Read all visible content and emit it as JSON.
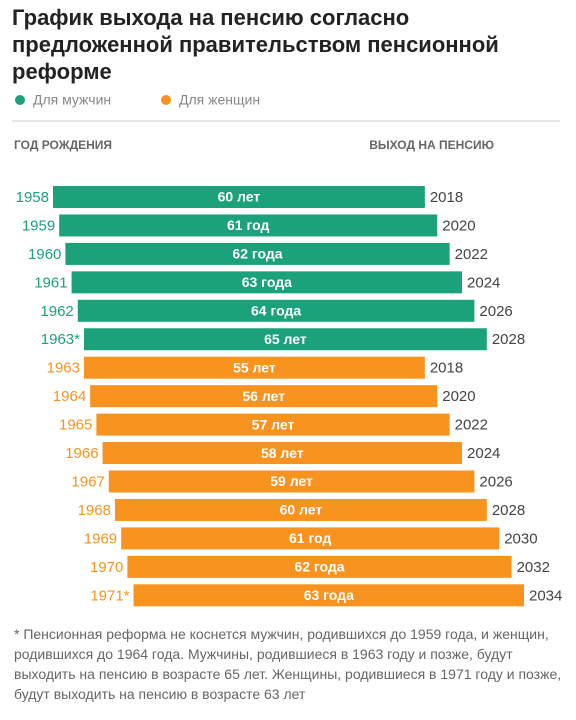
{
  "chart_data": {
    "type": "range-bar",
    "title": "График выхода на пенсию согласно предложенной правительством пенсионной реформе",
    "start_label": "ГОД РОЖДЕНИЯ",
    "end_label": "ВЫХОД НА ПЕНСИЮ",
    "series": [
      {
        "name": "Для мужчин",
        "color": "#1ba27a",
        "start": [
          1958,
          1959,
          1960,
          1961,
          1962,
          {
            "value": 1963,
            "label": "1963*"
          }
        ],
        "end": [
          2018,
          2020,
          2022,
          2024,
          2026,
          2028
        ],
        "values": [
          60,
          61,
          62,
          63,
          64,
          65
        ],
        "value_labels": [
          "60 лет",
          "61 год",
          "62 года",
          "63 года",
          "64 года",
          "65 лет"
        ]
      },
      {
        "name": "Для женщин",
        "color": "#f7931e",
        "start": [
          1963,
          1964,
          1965,
          1966,
          1967,
          1968,
          1969,
          1970,
          {
            "value": 1971,
            "label": "1971*"
          }
        ],
        "end": [
          2018,
          2020,
          2022,
          2024,
          2026,
          2028,
          2030,
          2032,
          2034
        ],
        "values": [
          55,
          56,
          57,
          58,
          59,
          60,
          61,
          62,
          63
        ],
        "value_labels": [
          "55 лет",
          "56 лет",
          "57 лет",
          "58 лет",
          "59 лет",
          "60 лет",
          "61 год",
          "62 года",
          "63 года"
        ]
      }
    ],
    "footnote": "* Пенсионная реформа не коснется мужчин, родившихся до 1959 года, и женщин, родившихся до 1964 года. Мужчины, родившиеся в 1963 году и позже, будут выходить на пенсию в возрасте 65 лет. Женщины, родившиеся в 1971 году и позже, будут выходить на пенсию в возрасте 63 лет"
  }
}
